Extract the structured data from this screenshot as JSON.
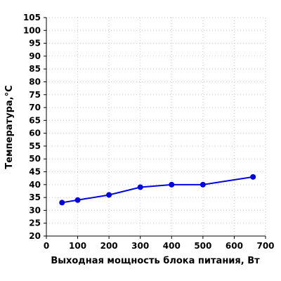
{
  "chart_data": {
    "type": "line",
    "title": "",
    "xlabel": "Выходная мощность блока питания, Вт",
    "ylabel": "Температура,°С",
    "xlim": [
      0,
      700
    ],
    "ylim": [
      20,
      105
    ],
    "x_ticks": [
      0,
      100,
      200,
      300,
      400,
      500,
      600,
      700
    ],
    "y_ticks": [
      20,
      25,
      30,
      35,
      40,
      45,
      50,
      55,
      60,
      65,
      70,
      75,
      80,
      85,
      90,
      95,
      100,
      105
    ],
    "grid": true,
    "legend": "none",
    "series": [
      {
        "color": "#0000e6",
        "x": [
          50,
          100,
          200,
          300,
          400,
          500,
          660
        ],
        "y": [
          33,
          34,
          36,
          39,
          40,
          40,
          43
        ]
      }
    ]
  }
}
